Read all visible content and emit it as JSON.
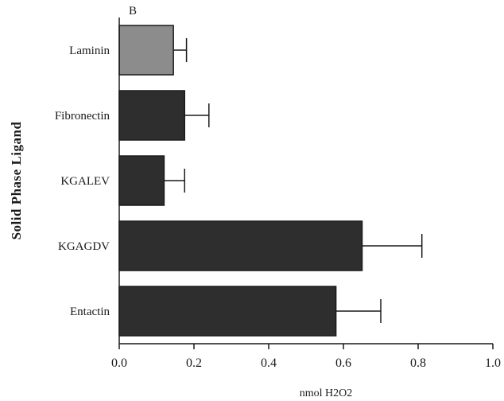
{
  "chart_data": {
    "type": "bar",
    "orientation": "horizontal",
    "panel_label": "B",
    "categories": [
      "Laminin",
      "Fibronectin",
      "KGALEV",
      "KGAGDV",
      "Entactin"
    ],
    "values": [
      0.145,
      0.175,
      0.12,
      0.65,
      0.58
    ],
    "errors": [
      0.035,
      0.065,
      0.055,
      0.16,
      0.12
    ],
    "xlabel": "nmol H2O2",
    "ylabel": "Solid Phase Ligand",
    "xlim": [
      0.0,
      1.0
    ],
    "xticks": [
      "0.0",
      "0.2",
      "0.4",
      "0.6",
      "0.8",
      "1.0"
    ],
    "grid": false,
    "colors": {
      "laminin": "#8c8c8c",
      "bars": "#2e2e2e",
      "axis": "#1a1a1a"
    }
  }
}
